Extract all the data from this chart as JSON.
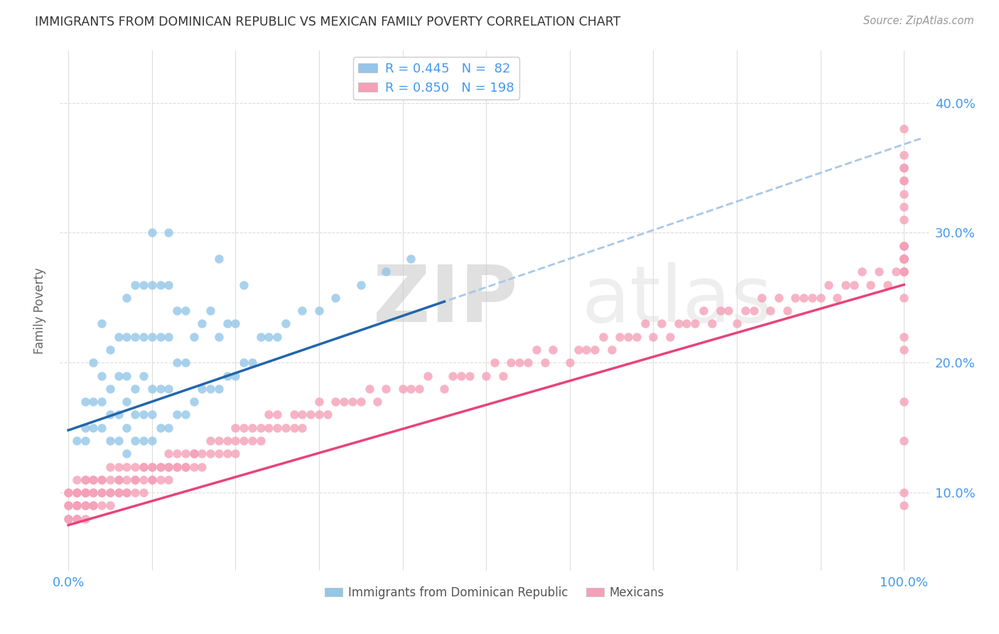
{
  "title": "IMMIGRANTS FROM DOMINICAN REPUBLIC VS MEXICAN FAMILY POVERTY CORRELATION CHART",
  "source": "Source: ZipAtlas.com",
  "ylabel": "Family Poverty",
  "ytick_labels": [
    "10.0%",
    "20.0%",
    "30.0%",
    "40.0%"
  ],
  "ytick_values": [
    0.1,
    0.2,
    0.3,
    0.4
  ],
  "xlim": [
    -0.01,
    1.03
  ],
  "ylim": [
    0.04,
    0.44
  ],
  "legend_blue_r": "R = 0.445",
  "legend_blue_n": "N =  82",
  "legend_pink_r": "R = 0.850",
  "legend_pink_n": "N = 198",
  "blue_color": "#93c6e8",
  "pink_color": "#f4a0b8",
  "blue_line_color": "#2166ac",
  "pink_line_color": "#e8437a",
  "dashed_line_color": "#a8c8e8",
  "background_color": "#ffffff",
  "grid_color": "#dddddd",
  "title_color": "#333333",
  "axis_label_color": "#4499ee",
  "blue_intercept": 0.148,
  "blue_slope": 0.22,
  "pink_intercept": 0.075,
  "pink_slope": 0.185,
  "blue_scatter_x": [
    0.01,
    0.02,
    0.02,
    0.02,
    0.03,
    0.03,
    0.03,
    0.04,
    0.04,
    0.04,
    0.04,
    0.05,
    0.05,
    0.05,
    0.05,
    0.06,
    0.06,
    0.06,
    0.06,
    0.07,
    0.07,
    0.07,
    0.07,
    0.07,
    0.07,
    0.08,
    0.08,
    0.08,
    0.08,
    0.08,
    0.09,
    0.09,
    0.09,
    0.09,
    0.09,
    0.1,
    0.1,
    0.1,
    0.1,
    0.1,
    0.1,
    0.11,
    0.11,
    0.11,
    0.11,
    0.12,
    0.12,
    0.12,
    0.12,
    0.12,
    0.13,
    0.13,
    0.13,
    0.14,
    0.14,
    0.14,
    0.15,
    0.15,
    0.16,
    0.16,
    0.17,
    0.17,
    0.18,
    0.18,
    0.18,
    0.19,
    0.19,
    0.2,
    0.2,
    0.21,
    0.21,
    0.22,
    0.23,
    0.24,
    0.25,
    0.26,
    0.28,
    0.3,
    0.32,
    0.35,
    0.38,
    0.41
  ],
  "blue_scatter_y": [
    0.14,
    0.14,
    0.15,
    0.17,
    0.15,
    0.17,
    0.2,
    0.15,
    0.17,
    0.19,
    0.23,
    0.14,
    0.16,
    0.18,
    0.21,
    0.14,
    0.16,
    0.19,
    0.22,
    0.13,
    0.15,
    0.17,
    0.19,
    0.22,
    0.25,
    0.14,
    0.16,
    0.18,
    0.22,
    0.26,
    0.14,
    0.16,
    0.19,
    0.22,
    0.26,
    0.14,
    0.16,
    0.18,
    0.22,
    0.26,
    0.3,
    0.15,
    0.18,
    0.22,
    0.26,
    0.15,
    0.18,
    0.22,
    0.26,
    0.3,
    0.16,
    0.2,
    0.24,
    0.16,
    0.2,
    0.24,
    0.17,
    0.22,
    0.18,
    0.23,
    0.18,
    0.24,
    0.18,
    0.22,
    0.28,
    0.19,
    0.23,
    0.19,
    0.23,
    0.2,
    0.26,
    0.2,
    0.22,
    0.22,
    0.22,
    0.23,
    0.24,
    0.24,
    0.25,
    0.26,
    0.27,
    0.28
  ],
  "pink_scatter_x": [
    0.0,
    0.0,
    0.0,
    0.0,
    0.0,
    0.0,
    0.01,
    0.01,
    0.01,
    0.01,
    0.01,
    0.01,
    0.01,
    0.01,
    0.01,
    0.02,
    0.02,
    0.02,
    0.02,
    0.02,
    0.02,
    0.02,
    0.02,
    0.03,
    0.03,
    0.03,
    0.03,
    0.03,
    0.03,
    0.04,
    0.04,
    0.04,
    0.04,
    0.04,
    0.05,
    0.05,
    0.05,
    0.05,
    0.05,
    0.06,
    0.06,
    0.06,
    0.06,
    0.06,
    0.07,
    0.07,
    0.07,
    0.07,
    0.08,
    0.08,
    0.08,
    0.08,
    0.09,
    0.09,
    0.09,
    0.09,
    0.1,
    0.1,
    0.1,
    0.1,
    0.11,
    0.11,
    0.11,
    0.12,
    0.12,
    0.12,
    0.12,
    0.13,
    0.13,
    0.13,
    0.14,
    0.14,
    0.14,
    0.15,
    0.15,
    0.15,
    0.16,
    0.16,
    0.17,
    0.17,
    0.18,
    0.18,
    0.19,
    0.19,
    0.2,
    0.2,
    0.2,
    0.21,
    0.21,
    0.22,
    0.22,
    0.23,
    0.23,
    0.24,
    0.24,
    0.25,
    0.25,
    0.26,
    0.27,
    0.27,
    0.28,
    0.28,
    0.29,
    0.3,
    0.3,
    0.31,
    0.32,
    0.33,
    0.34,
    0.35,
    0.36,
    0.37,
    0.38,
    0.4,
    0.41,
    0.42,
    0.43,
    0.45,
    0.46,
    0.47,
    0.48,
    0.5,
    0.51,
    0.52,
    0.53,
    0.54,
    0.55,
    0.56,
    0.57,
    0.58,
    0.6,
    0.61,
    0.62,
    0.63,
    0.64,
    0.65,
    0.66,
    0.67,
    0.68,
    0.69,
    0.7,
    0.71,
    0.72,
    0.73,
    0.74,
    0.75,
    0.76,
    0.77,
    0.78,
    0.79,
    0.8,
    0.81,
    0.82,
    0.83,
    0.84,
    0.85,
    0.86,
    0.87,
    0.88,
    0.89,
    0.9,
    0.91,
    0.92,
    0.93,
    0.94,
    0.95,
    0.96,
    0.97,
    0.98,
    0.99,
    1.0,
    1.0,
    1.0,
    1.0,
    1.0,
    1.0,
    1.0,
    1.0,
    1.0,
    1.0,
    1.0,
    1.0,
    1.0,
    1.0,
    1.0,
    1.0,
    1.0,
    1.0,
    1.0,
    1.0,
    1.0,
    1.0,
    1.0,
    1.0,
    1.0,
    1.0,
    1.0,
    1.0
  ],
  "pink_scatter_y": [
    0.08,
    0.08,
    0.09,
    0.09,
    0.1,
    0.1,
    0.08,
    0.08,
    0.09,
    0.09,
    0.09,
    0.1,
    0.1,
    0.1,
    0.11,
    0.08,
    0.09,
    0.09,
    0.1,
    0.1,
    0.1,
    0.11,
    0.11,
    0.09,
    0.09,
    0.1,
    0.1,
    0.11,
    0.11,
    0.09,
    0.1,
    0.1,
    0.11,
    0.11,
    0.09,
    0.1,
    0.1,
    0.11,
    0.12,
    0.1,
    0.1,
    0.11,
    0.11,
    0.12,
    0.1,
    0.1,
    0.11,
    0.12,
    0.1,
    0.11,
    0.11,
    0.12,
    0.1,
    0.11,
    0.12,
    0.12,
    0.11,
    0.11,
    0.12,
    0.12,
    0.11,
    0.12,
    0.12,
    0.11,
    0.12,
    0.12,
    0.13,
    0.12,
    0.12,
    0.13,
    0.12,
    0.12,
    0.13,
    0.12,
    0.13,
    0.13,
    0.12,
    0.13,
    0.13,
    0.14,
    0.13,
    0.14,
    0.13,
    0.14,
    0.13,
    0.14,
    0.15,
    0.14,
    0.15,
    0.14,
    0.15,
    0.14,
    0.15,
    0.15,
    0.16,
    0.15,
    0.16,
    0.15,
    0.15,
    0.16,
    0.15,
    0.16,
    0.16,
    0.16,
    0.17,
    0.16,
    0.17,
    0.17,
    0.17,
    0.17,
    0.18,
    0.17,
    0.18,
    0.18,
    0.18,
    0.18,
    0.19,
    0.18,
    0.19,
    0.19,
    0.19,
    0.19,
    0.2,
    0.19,
    0.2,
    0.2,
    0.2,
    0.21,
    0.2,
    0.21,
    0.2,
    0.21,
    0.21,
    0.21,
    0.22,
    0.21,
    0.22,
    0.22,
    0.22,
    0.23,
    0.22,
    0.23,
    0.22,
    0.23,
    0.23,
    0.23,
    0.24,
    0.23,
    0.24,
    0.24,
    0.23,
    0.24,
    0.24,
    0.25,
    0.24,
    0.25,
    0.24,
    0.25,
    0.25,
    0.25,
    0.25,
    0.26,
    0.25,
    0.26,
    0.26,
    0.27,
    0.26,
    0.27,
    0.26,
    0.27,
    0.27,
    0.28,
    0.27,
    0.28,
    0.28,
    0.28,
    0.29,
    0.28,
    0.29,
    0.29,
    0.09,
    0.1,
    0.14,
    0.17,
    0.21,
    0.22,
    0.25,
    0.27,
    0.28,
    0.31,
    0.32,
    0.34,
    0.35,
    0.36,
    0.33,
    0.34,
    0.35,
    0.38
  ]
}
